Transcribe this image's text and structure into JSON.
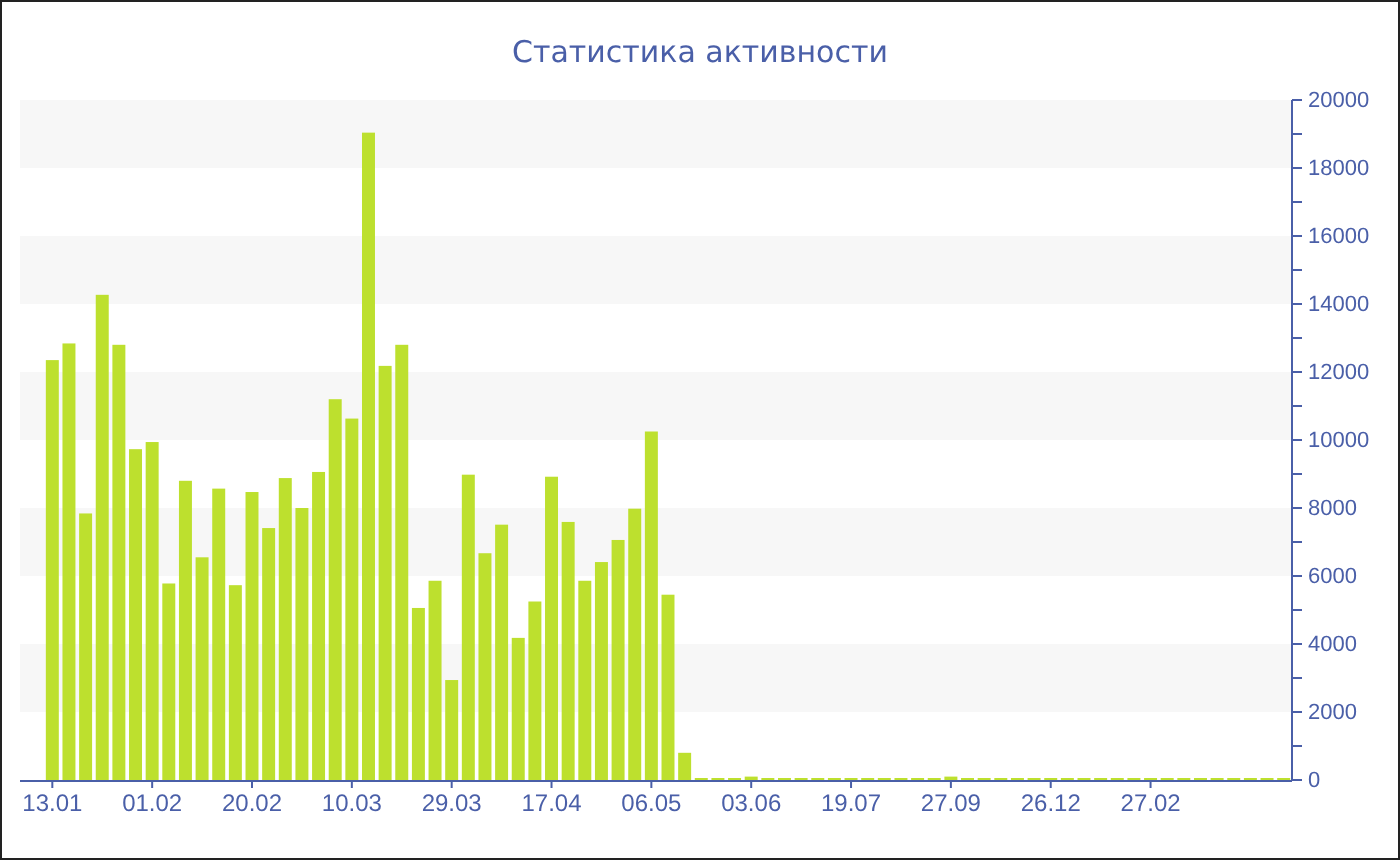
{
  "chart_data": {
    "type": "bar",
    "title": "Статистика активности",
    "categories": [
      "13.01",
      null,
      null,
      null,
      null,
      null,
      "01.02",
      null,
      null,
      null,
      null,
      null,
      "20.02",
      null,
      null,
      null,
      null,
      null,
      "10.03",
      null,
      null,
      null,
      null,
      null,
      "29.03",
      null,
      null,
      null,
      null,
      null,
      "17.04",
      null,
      null,
      null,
      null,
      null,
      "06.05",
      null,
      null,
      null,
      null,
      null,
      "03.06",
      null,
      null,
      null,
      null,
      null,
      "19.07",
      null,
      null,
      null,
      null,
      null,
      "27.09",
      null,
      null,
      null,
      null,
      null,
      "26.12",
      null,
      null,
      null,
      null,
      null,
      "27.02",
      null,
      null,
      null,
      null,
      null,
      null,
      null,
      null
    ],
    "values": [
      12350,
      12840,
      7840,
      14270,
      12800,
      9730,
      9940,
      5780,
      8800,
      6550,
      8570,
      5730,
      8470,
      7410,
      8880,
      8000,
      9060,
      11200,
      10630,
      19040,
      12180,
      12800,
      5060,
      5860,
      2940,
      8980,
      6670,
      7510,
      4180,
      5250,
      8920,
      7590,
      5860,
      6410,
      7060,
      7980,
      10250,
      5450,
      800,
      50,
      50,
      50,
      100,
      50,
      50,
      50,
      50,
      50,
      50,
      50,
      50,
      50,
      50,
      50,
      100,
      50,
      50,
      50,
      50,
      50,
      50,
      50,
      50,
      50,
      50,
      50,
      50,
      50,
      50,
      50,
      50,
      50,
      50,
      50,
      50
    ],
    "color": "#bde02e",
    "ylim": [
      0,
      20000
    ],
    "yticks": [
      0,
      {
        "value": 1000,
        "label": null
      },
      2000,
      {
        "value": 3000,
        "label": null
      },
      4000,
      {
        "value": 5000,
        "label": null
      },
      6000,
      {
        "value": 7000,
        "label": null
      },
      8000,
      {
        "value": 9000,
        "label": null
      },
      10000,
      {
        "value": 11000,
        "label": null
      },
      12000,
      {
        "value": 13000,
        "label": null
      },
      14000,
      {
        "value": 15000,
        "label": null
      },
      16000,
      {
        "value": 17000,
        "label": null
      },
      18000,
      {
        "value": 19000,
        "label": null
      },
      20000
    ]
  }
}
